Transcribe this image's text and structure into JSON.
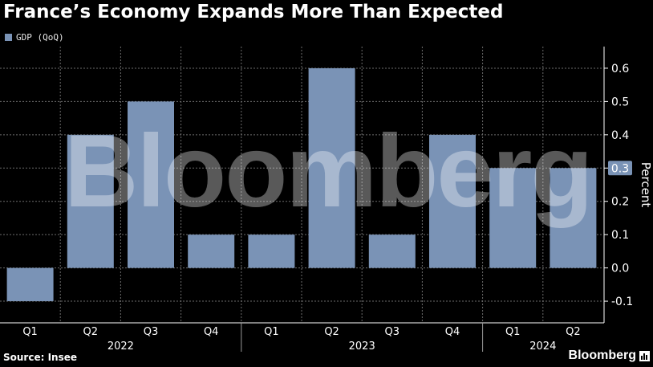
{
  "header": {
    "title": "France’s Economy Expands More Than Expected"
  },
  "legend": {
    "label": "GDP (QoQ)"
  },
  "footer": {
    "source": "Source: Insee",
    "brand": "Bloomberg"
  },
  "watermark": "Bloomberg",
  "colors": {
    "bar": "#7a93b6",
    "grid": "#6b6b6b",
    "background": "#000000",
    "text": "#ffffff"
  },
  "chart_data": {
    "type": "bar",
    "title": "France’s Economy Expands More Than Expected",
    "ylabel": "Percent",
    "xlabel": "",
    "categories": [
      "Q1",
      "Q2",
      "Q3",
      "Q4",
      "Q1",
      "Q2",
      "Q3",
      "Q4",
      "Q1",
      "Q2"
    ],
    "years": [
      {
        "label": "2022",
        "start": 0,
        "end": 3
      },
      {
        "label": "2023",
        "start": 4,
        "end": 7
      },
      {
        "label": "2024",
        "start": 8,
        "end": 9
      }
    ],
    "series": [
      {
        "name": "GDP (QoQ)",
        "values": [
          -0.1,
          0.4,
          0.5,
          0.1,
          0.1,
          0.6,
          0.1,
          0.4,
          0.3,
          0.3
        ]
      }
    ],
    "yticks": [
      "0.6",
      "0.5",
      "0.4",
      "0.3",
      "0.2",
      "0.1",
      "0.0",
      "-0.1"
    ],
    "ytick_values": [
      0.6,
      0.5,
      0.4,
      0.3,
      0.2,
      0.1,
      0.0,
      -0.1
    ],
    "ylim": [
      -0.165,
      0.665
    ],
    "last_value_label": "0.3",
    "grid": true,
    "legend_position": "top-left",
    "yaxis_position": "right"
  }
}
